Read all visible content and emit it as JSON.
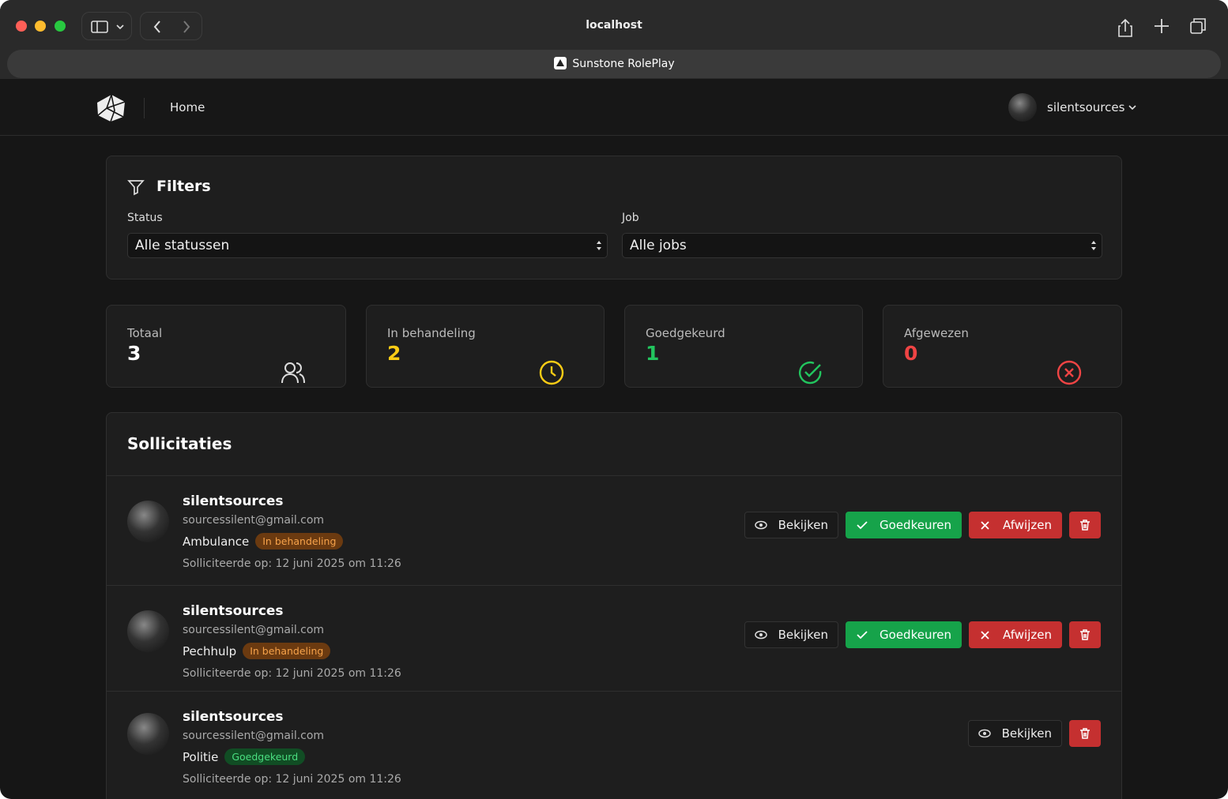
{
  "browser": {
    "url": "localhost",
    "tab": "Sunstone RolePlay"
  },
  "nav": {
    "links": [
      "Home"
    ],
    "user": "silentsources"
  },
  "filters": {
    "title": "Filters",
    "fields": [
      {
        "label": "Status",
        "value": "Alle statussen"
      },
      {
        "label": "Job",
        "value": "Alle jobs"
      }
    ]
  },
  "stats": [
    {
      "label": "Totaal",
      "value": 3
    },
    {
      "label": "In behandeling",
      "value": 2
    },
    {
      "label": "Goedgekeurd",
      "value": 1
    },
    {
      "label": "Afgewezen",
      "value": 0
    }
  ],
  "applications": {
    "title": "Sollicitaties",
    "items": [
      {
        "name": "silentsources",
        "email": "sourcessilent@gmail.com",
        "job": "Ambulance",
        "status": "In behandeling",
        "date": "Solliciteerde op: 12 juni 2025 om 11:26",
        "actions": [
          "Bekijken",
          "Goedkeuren",
          "Afwijzen"
        ]
      },
      {
        "name": "silentsources",
        "email": "sourcessilent@gmail.com",
        "job": "Pechhulp",
        "status": "In behandeling",
        "date": "Solliciteerde op: 12 juni 2025 om 11:26",
        "actions": [
          "Bekijken",
          "Goedkeuren",
          "Afwijzen"
        ]
      },
      {
        "name": "silentsources",
        "email": "sourcessilent@gmail.com",
        "job": "Politie",
        "status": "Goedgekeurd",
        "date": "Solliciteerde op: 12 juni 2025 om 11:26",
        "actions": [
          "Bekijken"
        ]
      }
    ]
  }
}
